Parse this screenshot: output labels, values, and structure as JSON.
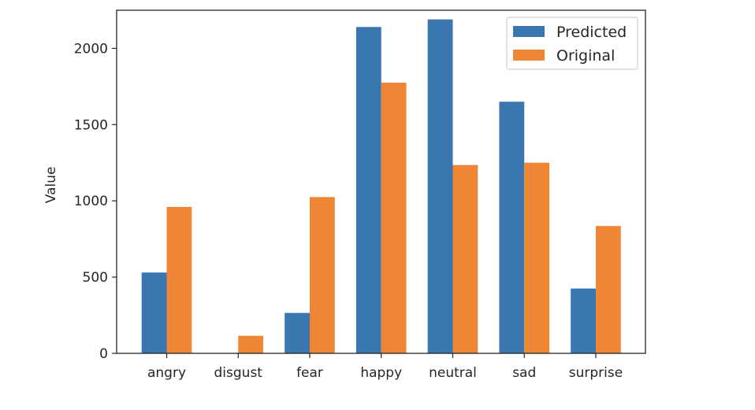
{
  "chart_data": {
    "type": "bar",
    "title": "",
    "xlabel": "",
    "ylabel": "Value",
    "categories": [
      "angry",
      "disgust",
      "fear",
      "happy",
      "neutral",
      "sad",
      "surprise"
    ],
    "series": [
      {
        "name": "Predicted",
        "color": "#3a76af",
        "values": [
          530,
          0,
          265,
          2140,
          2190,
          1650,
          425
        ]
      },
      {
        "name": "Original",
        "color": "#ef8636",
        "values": [
          960,
          115,
          1025,
          1775,
          1235,
          1250,
          835
        ]
      }
    ],
    "ylim": [
      0,
      2250
    ],
    "yticks": [
      0,
      500,
      1000,
      1500,
      2000
    ],
    "grid": false,
    "legend_position": "top-right"
  }
}
